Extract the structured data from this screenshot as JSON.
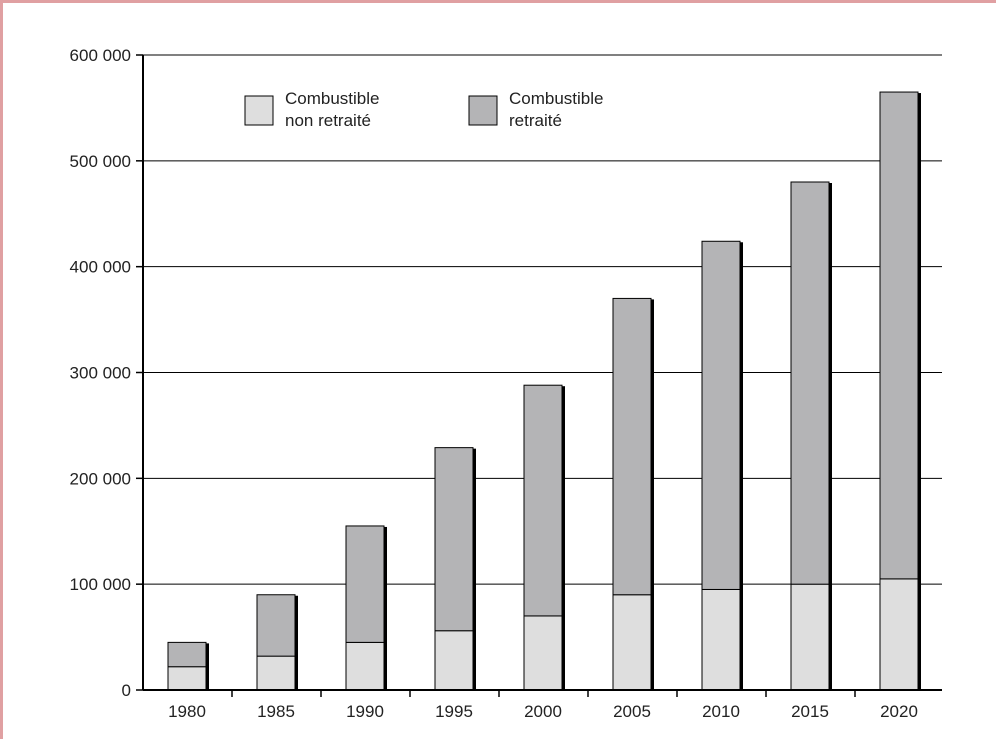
{
  "colors": {
    "frame": "#e0a0a2",
    "grid": "#000000",
    "non_retraite": "#dedede",
    "retraite": "#b4b4b6",
    "bar_outline": "#000000"
  },
  "chart_data": {
    "type": "bar",
    "stacked": true,
    "title": "",
    "xlabel": "",
    "ylabel": "",
    "categories": [
      "1980",
      "1985",
      "1990",
      "1995",
      "2000",
      "2005",
      "2010",
      "2015",
      "2020"
    ],
    "series": [
      {
        "name": "Combustible non retraité",
        "name_lines": [
          "Combustible",
          "non retraité"
        ],
        "color": "#dedede",
        "values": [
          22000,
          32000,
          45000,
          56000,
          70000,
          90000,
          95000,
          100000,
          105000
        ]
      },
      {
        "name": "Combustible retraité",
        "name_lines": [
          "Combustible",
          "retraité"
        ],
        "color": "#b4b4b6",
        "values": [
          23000,
          58000,
          110000,
          173000,
          218000,
          280000,
          329000,
          380000,
          460000
        ]
      }
    ],
    "ylim": [
      0,
      600000
    ],
    "yticks": [
      0,
      100000,
      200000,
      300000,
      400000,
      500000,
      600000
    ],
    "ytick_labels": [
      "0",
      "100 000",
      "200 000",
      "300 000",
      "400 000",
      "500 000",
      "600 000"
    ],
    "grid": true,
    "legend": "top-left"
  }
}
